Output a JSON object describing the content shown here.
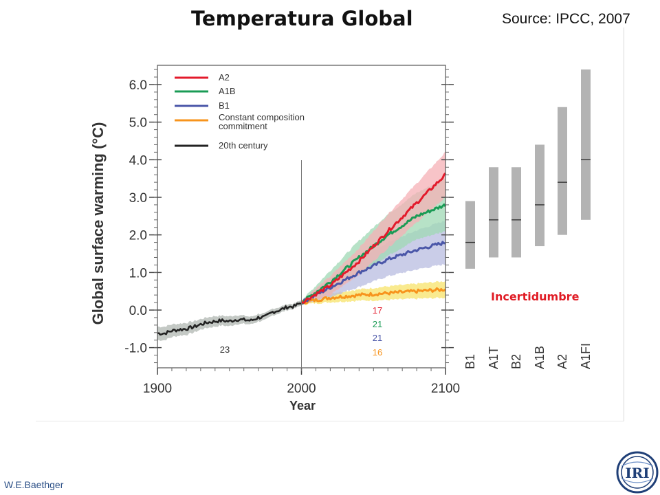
{
  "slide": {
    "title": "Temperatura Global",
    "source": "Source: IPCC, 2007",
    "author": "W.E.Baethger",
    "logo_text": "IRI"
  },
  "chart_data": {
    "type": "line",
    "xlabel": "Year",
    "ylabel": "Global surface warming (°C)",
    "xlim": [
      1900,
      2100
    ],
    "ylim": [
      -1.6,
      6.6
    ],
    "x_ticks": [
      "1900",
      "2000",
      "2100"
    ],
    "y_ticks": [
      "-1.0",
      "0.0",
      "1.0",
      "2.0",
      "3.0",
      "4.0",
      "5.0",
      "6.0"
    ],
    "legend": {
      "placement": "top-left",
      "entries": [
        "A2",
        "A1B",
        "B1",
        "Constant composition commitment",
        "20th century"
      ]
    },
    "colors": {
      "A2": "#e31a2b",
      "A1B": "#1a9b55",
      "B1": "#4a56a8",
      "Constant composition commitment": "#f7941d",
      "20th century": "#222222"
    },
    "band_colors": {
      "A2": "#f5b0b5",
      "A1B": "#9fd8b4",
      "B1": "#b8bce0",
      "Constant composition commitment": "#f7e36a",
      "20th century": "#b0b7b2"
    },
    "series": [
      {
        "name": "20th century",
        "x": [
          1900,
          1905,
          1910,
          1915,
          1920,
          1925,
          1930,
          1935,
          1940,
          1945,
          1950,
          1955,
          1960,
          1965,
          1970,
          1975,
          1980,
          1985,
          1990,
          1995,
          2000
        ],
        "values": [
          -0.62,
          -0.62,
          -0.55,
          -0.52,
          -0.5,
          -0.45,
          -0.38,
          -0.33,
          -0.3,
          -0.28,
          -0.3,
          -0.25,
          -0.26,
          -0.28,
          -0.2,
          -0.18,
          -0.05,
          0.0,
          0.08,
          0.1,
          0.2
        ],
        "uncertainty": [
          0.18,
          0.18,
          0.17,
          0.16,
          0.16,
          0.15,
          0.14,
          0.14,
          0.14,
          0.13,
          0.13,
          0.12,
          0.11,
          0.1,
          0.1,
          0.09,
          0.09,
          0.08,
          0.08,
          0.07,
          0.07
        ]
      },
      {
        "name": "Constant composition commitment",
        "x": [
          2000,
          2020,
          2040,
          2060,
          2080,
          2100
        ],
        "values": [
          0.2,
          0.33,
          0.4,
          0.45,
          0.5,
          0.55
        ],
        "uncertainty": [
          0.05,
          0.12,
          0.15,
          0.18,
          0.2,
          0.22
        ]
      },
      {
        "name": "B1",
        "x": [
          2000,
          2020,
          2040,
          2060,
          2080,
          2100
        ],
        "values": [
          0.2,
          0.6,
          1.0,
          1.35,
          1.6,
          1.8
        ],
        "uncertainty": [
          0.05,
          0.25,
          0.38,
          0.45,
          0.52,
          0.58
        ]
      },
      {
        "name": "A1B",
        "x": [
          2000,
          2020,
          2040,
          2060,
          2080,
          2100
        ],
        "values": [
          0.2,
          0.75,
          1.4,
          2.0,
          2.5,
          2.8
        ],
        "uncertainty": [
          0.05,
          0.3,
          0.45,
          0.55,
          0.62,
          0.7
        ]
      },
      {
        "name": "A2",
        "x": [
          2000,
          2020,
          2040,
          2060,
          2080,
          2100
        ],
        "values": [
          0.2,
          0.65,
          1.3,
          2.1,
          2.85,
          3.6
        ],
        "uncertainty": [
          0.05,
          0.25,
          0.35,
          0.45,
          0.52,
          0.6
        ]
      }
    ],
    "model_counts": [
      {
        "label": "23",
        "name": "20th century"
      },
      {
        "label": "17",
        "name": "A2"
      },
      {
        "label": "21",
        "name": "A1B"
      },
      {
        "label": "21",
        "name": "B1"
      },
      {
        "label": "16",
        "name": "Constant composition commitment"
      }
    ],
    "ranges": {
      "annotation": "Incertidumbre",
      "bars": [
        {
          "label": "B1",
          "low": 1.1,
          "high": 2.9,
          "best": 1.8
        },
        {
          "label": "A1T",
          "low": 1.4,
          "high": 3.8,
          "best": 2.4
        },
        {
          "label": "B2",
          "low": 1.4,
          "high": 3.8,
          "best": 2.4
        },
        {
          "label": "A1B",
          "low": 1.7,
          "high": 4.4,
          "best": 2.8
        },
        {
          "label": "A2",
          "low": 2.0,
          "high": 5.4,
          "best": 3.4
        },
        {
          "label": "A1FI",
          "low": 2.4,
          "high": 6.4,
          "best": 4.0
        }
      ]
    }
  }
}
